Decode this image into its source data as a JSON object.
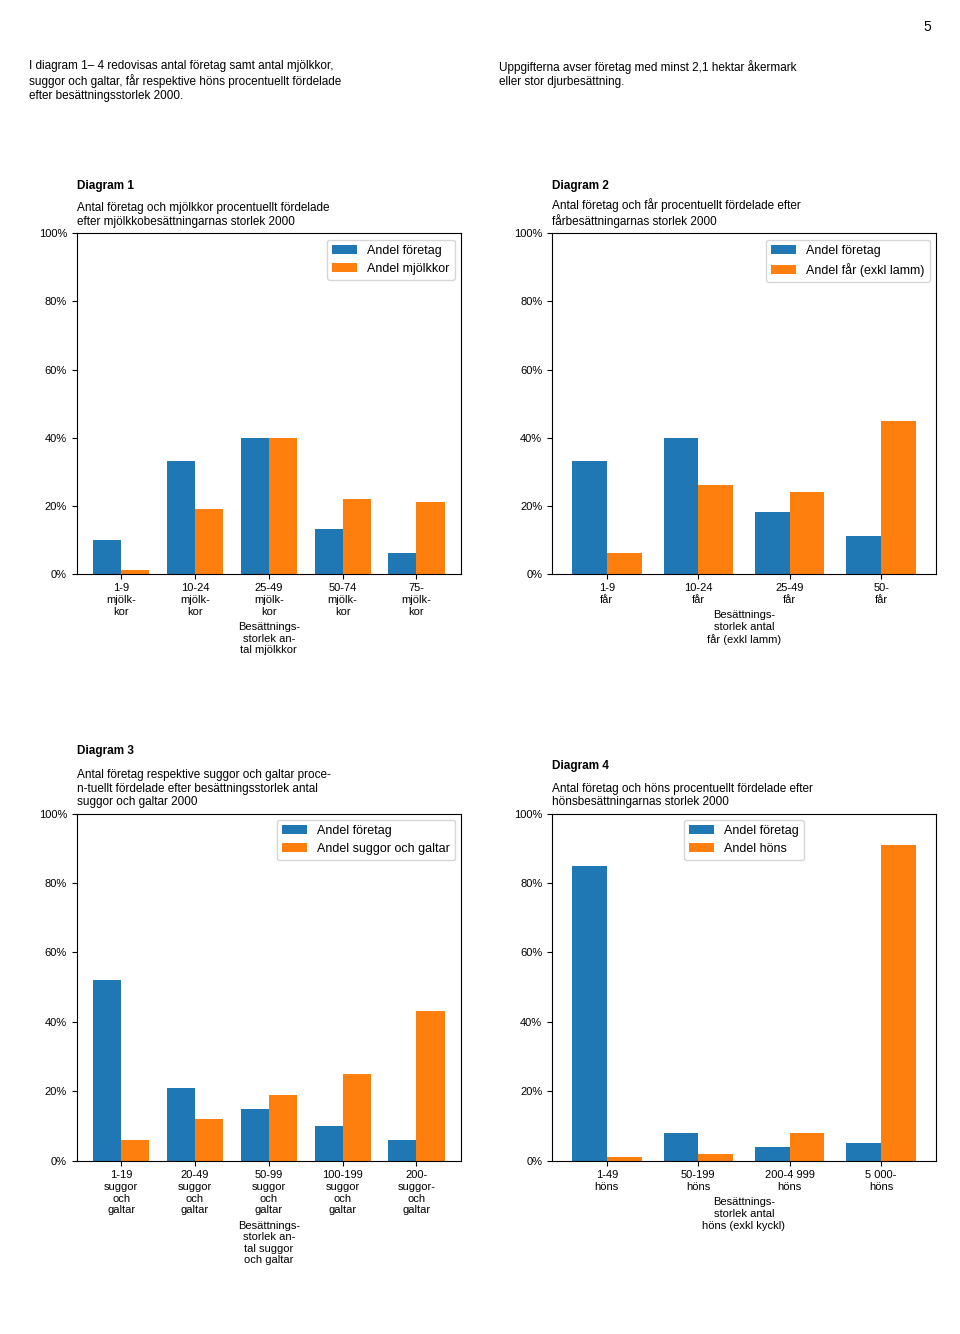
{
  "annotations": [
    "5",
    "I diagram 1– 4 redovisas antal företag samt antal mjölkkor,\nsuggor och galtar, får respektive höns procentuellt fördelade\nefter besättningsstorlek 2000.",
    "Uppgifterna avser företag med minst 2,1 hektar åkermark\neller stor djurbesättning."
  ],
  "chart_data": [
    {
      "type": "bar",
      "title": "Diagram 1",
      "subtitle": "Antal företag och mjölkkor procentuellt fördelade\nefter mjölkkobesättningarnas storlek 2000",
      "categories": [
        "1-9\nmjölk-\nkor",
        "10-24\nmjölk-\nkor",
        "25-49\nmjölk-\nkor",
        "50-74\nmjölk-\nkor",
        "75-\nmjölk-\nkor"
      ],
      "xlabel": "Besättnings-\nstorlek an-\ntal mjölkkor",
      "series": [
        {
          "name": "Andel företag",
          "values": [
            10,
            33,
            40,
            13,
            6
          ]
        },
        {
          "name": "Andel mjölkkor",
          "values": [
            1,
            19,
            40,
            22,
            21
          ]
        }
      ],
      "ylim": [
        0,
        100
      ],
      "yticks": [
        {
          "value": 0,
          "label": "0%"
        },
        {
          "value": 20,
          "label": "20%"
        },
        {
          "value": 40,
          "label": "40%"
        },
        {
          "value": 60,
          "label": "60%"
        },
        {
          "value": 80,
          "label": "80%"
        },
        {
          "value": 100,
          "label": "100%"
        }
      ],
      "grid": false,
      "legend": "upper right"
    },
    {
      "type": "bar",
      "title": "Diagram 2",
      "subtitle": "Antal företag och får procentuellt fördelade efter\nfårbesättningarnas storlek 2000",
      "categories": [
        "1-9\nfår",
        "10-24\nfår",
        "25-49\nfår",
        "50-\nfår"
      ],
      "xlabel": "Besättnings-\nstorlek antal\nfår (exkl lamm)",
      "series": [
        {
          "name": "Andel företag",
          "values": [
            33,
            40,
            18,
            11
          ]
        },
        {
          "name": "Andel får (exkl lamm)",
          "values": [
            6,
            26,
            24,
            45
          ]
        }
      ],
      "ylim": [
        0,
        100
      ],
      "yticks": [
        {
          "value": 0,
          "label": "0%"
        },
        {
          "value": 20,
          "label": "20%"
        },
        {
          "value": 40,
          "label": "40%"
        },
        {
          "value": 60,
          "label": "60%"
        },
        {
          "value": 80,
          "label": "80%"
        },
        {
          "value": 100,
          "label": "100%"
        }
      ],
      "grid": false,
      "legend": "upper right"
    },
    {
      "type": "bar",
      "title": "Diagram 3",
      "subtitle": "Antal företag respektive suggor och galtar proce­\nn­tuellt fördelade efter besättningsstorlek antal\nsuggor och galtar 2000",
      "categories": [
        "1-19\nsuggor\noch\ngaltar",
        "20-49\nsuggor\noch\ngaltar",
        "50-99\nsuggor\noch\ngaltar",
        "100-199\nsuggor\noch\ngaltar",
        "200-\nsuggor-\noch\ngaltar"
      ],
      "xlabel": "Besättnings-\nstorlek an-\ntal suggor\noch galtar",
      "series": [
        {
          "name": "Andel företag",
          "values": [
            52,
            21,
            15,
            10,
            6
          ]
        },
        {
          "name": "Andel suggor och galtar",
          "values": [
            6,
            12,
            19,
            25,
            43
          ]
        }
      ],
      "ylim": [
        0,
        100
      ],
      "yticks": [
        {
          "value": 0,
          "label": "0%"
        },
        {
          "value": 20,
          "label": "20%"
        },
        {
          "value": 40,
          "label": "40%"
        },
        {
          "value": 60,
          "label": "60%"
        },
        {
          "value": 80,
          "label": "80%"
        },
        {
          "value": 100,
          "label": "100%"
        }
      ],
      "grid": false,
      "legend": "upper right"
    },
    {
      "type": "bar",
      "title": "Diagram 4",
      "subtitle": "Antal företag och höns procentuellt fördelade efter\nhönsbesättningarnas storlek 2000",
      "categories": [
        "1-49\nhöns",
        "50-199\nhöns",
        "200-4 999\nhöns",
        "5 000-\nhöns"
      ],
      "xlabel": "Besättnings-\nstorlek antal\nhöns (exkl kyckl)",
      "series": [
        {
          "name": "Andel företag",
          "values": [
            85,
            8,
            4,
            5
          ]
        },
        {
          "name": "Andel höns",
          "values": [
            1,
            2,
            8,
            91
          ]
        }
      ],
      "ylim": [
        0,
        100
      ],
      "yticks": [
        {
          "value": 0,
          "label": "0%"
        },
        {
          "value": 20,
          "label": "20%"
        },
        {
          "value": 40,
          "label": "40%"
        },
        {
          "value": 60,
          "label": "60%"
        },
        {
          "value": 80,
          "label": "80%"
        },
        {
          "value": 100,
          "label": "100%"
        }
      ],
      "grid": false,
      "legend": "upper center"
    }
  ]
}
